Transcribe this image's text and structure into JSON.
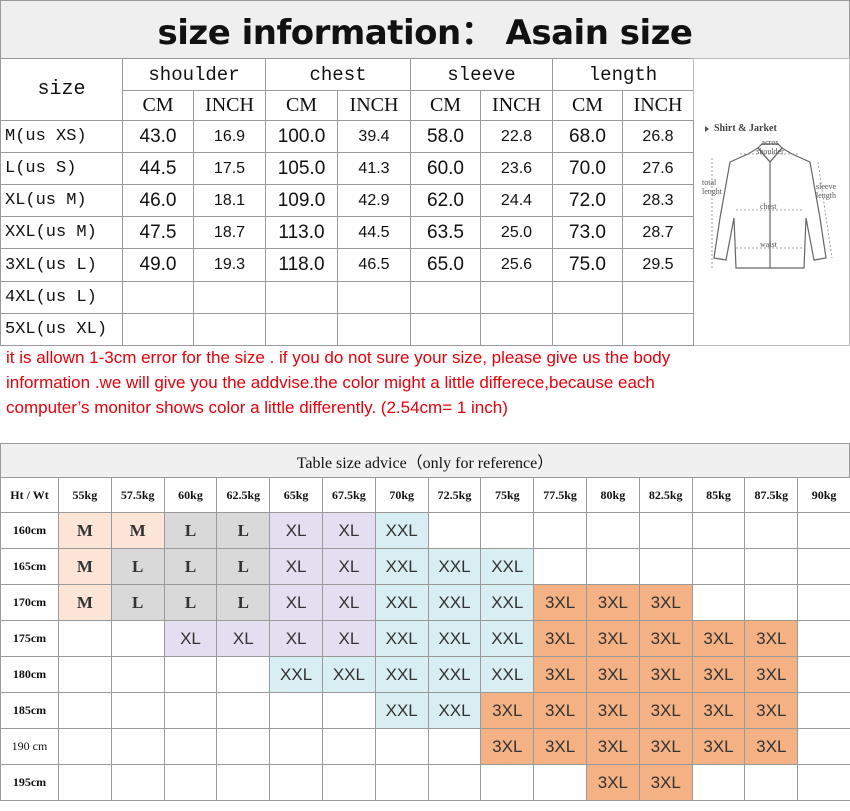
{
  "size_table": {
    "title": "size information：  Asain size",
    "size_header": "size",
    "groups": [
      "shoulder",
      "chest",
      "sleeve",
      "length"
    ],
    "units": [
      "CM",
      "INCH",
      "CM",
      "INCH",
      "CM",
      "INCH",
      "CM",
      "INCH"
    ],
    "rows": [
      {
        "size": "M(us XS)",
        "values": [
          "43.0",
          "16.9",
          "100.0",
          "39.4",
          "58.0",
          "22.8",
          "68.0",
          "26.8"
        ]
      },
      {
        "size": "L(us S)",
        "values": [
          "44.5",
          "17.5",
          "105.0",
          "41.3",
          "60.0",
          "23.6",
          "70.0",
          "27.6"
        ]
      },
      {
        "size": "XL(us M)",
        "values": [
          "46.0",
          "18.1",
          "109.0",
          "42.9",
          "62.0",
          "24.4",
          "72.0",
          "28.3"
        ]
      },
      {
        "size": "XXL(us M)",
        "values": [
          "47.5",
          "18.7",
          "113.0",
          "44.5",
          "63.5",
          "25.0",
          "73.0",
          "28.7"
        ]
      },
      {
        "size": "3XL(us L)",
        "values": [
          "49.0",
          "19.3",
          "118.0",
          "46.5",
          "65.0",
          "25.6",
          "75.0",
          "29.5"
        ]
      },
      {
        "size": "4XL(us L)",
        "values": [
          null,
          null,
          null,
          null,
          null,
          null,
          null,
          null
        ]
      },
      {
        "size": "5XL(us XL)",
        "values": [
          null,
          null,
          null,
          null,
          null,
          null,
          null,
          null
        ]
      }
    ]
  },
  "diagram": {
    "title": "Shirt & Jarket",
    "shoulder": "acros shoulder",
    "length": "total lenght",
    "sleeve": "sleeve length",
    "chest": "chest",
    "waist": "waist"
  },
  "note": [
    "it is allown 1-3cm error for the size . if you do not sure your size, please give us the body",
    "information .we will give you the addvise.the color might a little differece,because  each",
    " computer’s monitor shows color a little differently.   (2.54cm= 1 inch)"
  ],
  "advice_table": {
    "title": "Table size advice（only for reference）",
    "corner": "Ht / Wt",
    "weights": [
      "55kg",
      "57.5kg",
      "60kg",
      "62.5kg",
      "65kg",
      "67.5kg",
      "70kg",
      "72.5kg",
      "75kg",
      "77.5kg",
      "80kg",
      "82.5kg",
      "85kg",
      "87.5kg",
      "90kg"
    ],
    "cell_colors": {
      "M": "#fce4d6",
      "L": "#d9d9d9",
      "XL": "#e4dff0",
      "XXL": "#d9eef2",
      "3XL": "#f4b183"
    },
    "rows": [
      {
        "height": "160cm",
        "cells": [
          "M",
          "M",
          "L",
          "L",
          "XL",
          "XL",
          "XXL",
          null,
          null,
          null,
          null,
          null,
          null,
          null,
          null
        ]
      },
      {
        "height": "165cm",
        "cells": [
          "M",
          "L",
          "L",
          "L",
          "XL",
          "XL",
          "XXL",
          "XXL",
          "XXL",
          null,
          null,
          null,
          null,
          null,
          null
        ]
      },
      {
        "height": "170cm",
        "cells": [
          "M",
          "L",
          "L",
          "L",
          "XL",
          "XL",
          "XXL",
          "XXL",
          "XXL",
          "3XL",
          "3XL",
          "3XL",
          null,
          null,
          null
        ]
      },
      {
        "height": "175cm",
        "cells": [
          null,
          null,
          "XL",
          "XL",
          "XL",
          "XL",
          "XXL",
          "XXL",
          "XXL",
          "3XL",
          "3XL",
          "3XL",
          "3XL",
          "3XL",
          null
        ]
      },
      {
        "height": "180cm",
        "cells": [
          null,
          null,
          null,
          null,
          "XXL",
          "XXL",
          "XXL",
          "XXL",
          "XXL",
          "3XL",
          "3XL",
          "3XL",
          "3XL",
          "3XL",
          null
        ]
      },
      {
        "height": "185cm",
        "cells": [
          null,
          null,
          null,
          null,
          null,
          null,
          "XXL",
          "XXL",
          "3XL",
          "3XL",
          "3XL",
          "3XL",
          "3XL",
          "3XL",
          null
        ]
      },
      {
        "height": "190 cm",
        "cells": [
          null,
          null,
          null,
          null,
          null,
          null,
          null,
          null,
          "3XL",
          "3XL",
          "3XL",
          "3XL",
          "3XL",
          "3XL",
          null
        ]
      },
      {
        "height": "195cm",
        "cells": [
          null,
          null,
          null,
          null,
          null,
          null,
          null,
          null,
          null,
          null,
          "3XL",
          "3XL",
          null,
          null,
          null
        ]
      }
    ]
  }
}
